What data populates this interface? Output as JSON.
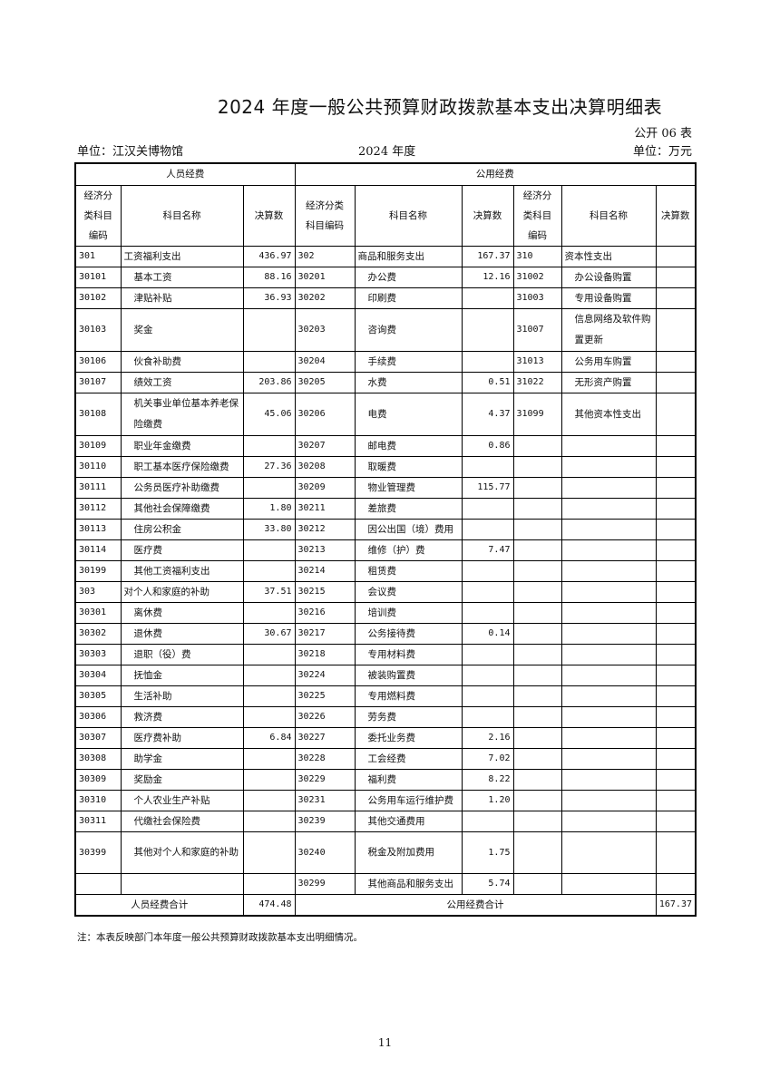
{
  "title": "2024 年度一般公共预算财政拨款基本支出决算明细表",
  "form_no": "公开 06 表",
  "unit": "单位：江汉关博物馆",
  "year": "2024 年度",
  "currency_unit": "单位：万元",
  "table": {
    "group_personnel": "人员经费",
    "group_public": "公用经费",
    "col_code_lines": [
      "经济分",
      "类科目",
      "编码"
    ],
    "col_code_mid_lines": [
      "经济分类",
      "科目编码"
    ],
    "col_name": "科目名称",
    "col_amount": "决算数",
    "rows": [
      [
        [
          "301",
          "工资福利支出",
          "436.97"
        ],
        [
          "302",
          "商品和服务支出",
          "167.37"
        ],
        [
          "310",
          "资本性支出",
          ""
        ]
      ],
      [
        [
          "30101",
          "基本工资",
          "88.16"
        ],
        [
          "30201",
          "办公费",
          "12.16"
        ],
        [
          "31002",
          "办公设备购置",
          ""
        ]
      ],
      [
        [
          "30102",
          "津贴补贴",
          "36.93"
        ],
        [
          "30202",
          "印刷费",
          ""
        ],
        [
          "31003",
          "专用设备购置",
          ""
        ]
      ],
      [
        [
          "30103",
          "奖金",
          ""
        ],
        [
          "30203",
          "咨询费",
          ""
        ],
        [
          "31007",
          "信息网络及软件购置更新",
          ""
        ]
      ],
      [
        [
          "30106",
          "伙食补助费",
          ""
        ],
        [
          "30204",
          "手续费",
          ""
        ],
        [
          "31013",
          "公务用车购置",
          ""
        ]
      ],
      [
        [
          "30107",
          "绩效工资",
          "203.86"
        ],
        [
          "30205",
          "水费",
          "0.51"
        ],
        [
          "31022",
          "无形资产购置",
          ""
        ]
      ],
      [
        [
          "30108",
          "机关事业单位基本养老保险缴费",
          "45.06"
        ],
        [
          "30206",
          "电费",
          "4.37"
        ],
        [
          "31099",
          "其他资本性支出",
          ""
        ]
      ],
      [
        [
          "30109",
          "职业年金缴费",
          ""
        ],
        [
          "30207",
          "邮电费",
          "0.86"
        ],
        [
          "",
          "",
          ""
        ]
      ],
      [
        [
          "30110",
          "职工基本医疗保险缴费",
          "27.36"
        ],
        [
          "30208",
          "取暖费",
          ""
        ],
        [
          "",
          "",
          ""
        ]
      ],
      [
        [
          "30111",
          "公务员医疗补助缴费",
          ""
        ],
        [
          "30209",
          "物业管理费",
          "115.77"
        ],
        [
          "",
          "",
          ""
        ]
      ],
      [
        [
          "30112",
          "其他社会保障缴费",
          "1.80"
        ],
        [
          "30211",
          "差旅费",
          ""
        ],
        [
          "",
          "",
          ""
        ]
      ],
      [
        [
          "30113",
          "住房公积金",
          "33.80"
        ],
        [
          "30212",
          "因公出国（境）费用",
          ""
        ],
        [
          "",
          "",
          ""
        ]
      ],
      [
        [
          "30114",
          "医疗费",
          ""
        ],
        [
          "30213",
          "维修（护）费",
          "7.47"
        ],
        [
          "",
          "",
          ""
        ]
      ],
      [
        [
          "30199",
          "其他工资福利支出",
          ""
        ],
        [
          "30214",
          "租赁费",
          ""
        ],
        [
          "",
          "",
          ""
        ]
      ],
      [
        [
          "303",
          "对个人和家庭的补助",
          "37.51"
        ],
        [
          "30215",
          "会议费",
          ""
        ],
        [
          "",
          "",
          ""
        ]
      ],
      [
        [
          "30301",
          "离休费",
          ""
        ],
        [
          "30216",
          "培训费",
          ""
        ],
        [
          "",
          "",
          ""
        ]
      ],
      [
        [
          "30302",
          "退休费",
          "30.67"
        ],
        [
          "30217",
          "公务接待费",
          "0.14"
        ],
        [
          "",
          "",
          ""
        ]
      ],
      [
        [
          "30303",
          "退职（役）费",
          ""
        ],
        [
          "30218",
          "专用材料费",
          ""
        ],
        [
          "",
          "",
          ""
        ]
      ],
      [
        [
          "30304",
          "抚恤金",
          ""
        ],
        [
          "30224",
          "被装购置费",
          ""
        ],
        [
          "",
          "",
          ""
        ]
      ],
      [
        [
          "30305",
          "生活补助",
          ""
        ],
        [
          "30225",
          "专用燃料费",
          ""
        ],
        [
          "",
          "",
          ""
        ]
      ],
      [
        [
          "30306",
          "救济费",
          ""
        ],
        [
          "30226",
          "劳务费",
          ""
        ],
        [
          "",
          "",
          ""
        ]
      ],
      [
        [
          "30307",
          "医疗费补助",
          "6.84"
        ],
        [
          "30227",
          "委托业务费",
          "2.16"
        ],
        [
          "",
          "",
          ""
        ]
      ],
      [
        [
          "30308",
          "助学金",
          ""
        ],
        [
          "30228",
          "工会经费",
          "7.02"
        ],
        [
          "",
          "",
          ""
        ]
      ],
      [
        [
          "30309",
          "奖励金",
          ""
        ],
        [
          "30229",
          "福利费",
          "8.22"
        ],
        [
          "",
          "",
          ""
        ]
      ],
      [
        [
          "30310",
          "个人农业生产补贴",
          ""
        ],
        [
          "30231",
          "公务用车运行维护费",
          "1.20"
        ],
        [
          "",
          "",
          ""
        ]
      ],
      [
        [
          "30311",
          "代缴社会保险费",
          ""
        ],
        [
          "30239",
          "其他交通费用",
          ""
        ],
        [
          "",
          "",
          ""
        ]
      ],
      [
        [
          "30399",
          "其他对个人和家庭的补助",
          ""
        ],
        [
          "30240",
          "税金及附加费用",
          "1.75"
        ],
        [
          "",
          "",
          ""
        ]
      ],
      [
        [
          "",
          "",
          ""
        ],
        [
          "30299",
          "其他商品和服务支出",
          "5.74"
        ],
        [
          "",
          "",
          ""
        ]
      ]
    ],
    "total_personnel_label": "人员经费合计",
    "total_personnel": "474.48",
    "total_public_label": "公用经费合计",
    "total_public": "167.37"
  },
  "note": "注：本表反映部门本年度一般公共预算财政拨款基本支出明细情况。",
  "page_number": "11"
}
